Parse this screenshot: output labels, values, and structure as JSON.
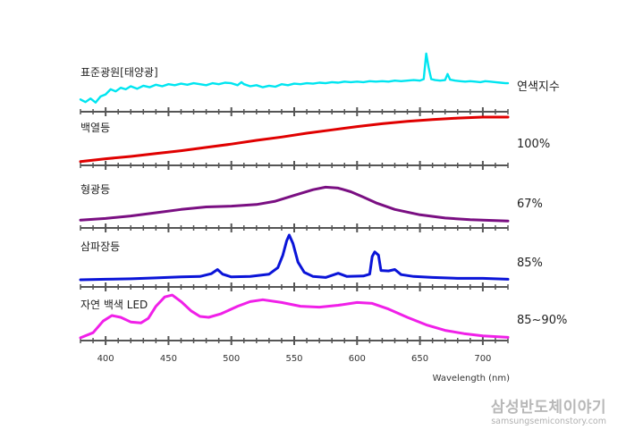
{
  "chart_data": {
    "type": "line",
    "xlabel": "Wavelength (nm)",
    "xlim": [
      380,
      720
    ],
    "xticks": [
      400,
      450,
      500,
      550,
      600,
      650,
      700
    ],
    "cri_header": "연색지수",
    "series": [
      {
        "name": "표준광원[태양광]",
        "cri": "",
        "color": "#00e5f0",
        "points": [
          [
            380,
            0.1
          ],
          [
            384,
            0.05
          ],
          [
            388,
            0.12
          ],
          [
            392,
            0.04
          ],
          [
            396,
            0.16
          ],
          [
            400,
            0.2
          ],
          [
            404,
            0.3
          ],
          [
            408,
            0.26
          ],
          [
            412,
            0.33
          ],
          [
            416,
            0.3
          ],
          [
            420,
            0.36
          ],
          [
            425,
            0.31
          ],
          [
            430,
            0.37
          ],
          [
            435,
            0.34
          ],
          [
            440,
            0.39
          ],
          [
            445,
            0.36
          ],
          [
            450,
            0.4
          ],
          [
            455,
            0.38
          ],
          [
            460,
            0.41
          ],
          [
            465,
            0.39
          ],
          [
            470,
            0.42
          ],
          [
            475,
            0.4
          ],
          [
            480,
            0.38
          ],
          [
            485,
            0.42
          ],
          [
            490,
            0.4
          ],
          [
            495,
            0.43
          ],
          [
            500,
            0.42
          ],
          [
            505,
            0.38
          ],
          [
            508,
            0.44
          ],
          [
            510,
            0.4
          ],
          [
            515,
            0.36
          ],
          [
            520,
            0.38
          ],
          [
            525,
            0.34
          ],
          [
            530,
            0.37
          ],
          [
            535,
            0.35
          ],
          [
            540,
            0.4
          ],
          [
            545,
            0.38
          ],
          [
            550,
            0.41
          ],
          [
            555,
            0.4
          ],
          [
            560,
            0.42
          ],
          [
            565,
            0.41
          ],
          [
            570,
            0.43
          ],
          [
            575,
            0.42
          ],
          [
            580,
            0.44
          ],
          [
            585,
            0.43
          ],
          [
            590,
            0.45
          ],
          [
            595,
            0.44
          ],
          [
            600,
            0.45
          ],
          [
            605,
            0.44
          ],
          [
            610,
            0.46
          ],
          [
            615,
            0.45
          ],
          [
            620,
            0.46
          ],
          [
            625,
            0.45
          ],
          [
            630,
            0.47
          ],
          [
            635,
            0.46
          ],
          [
            640,
            0.47
          ],
          [
            645,
            0.48
          ],
          [
            650,
            0.47
          ],
          [
            653,
            0.5
          ],
          [
            655,
            1.0
          ],
          [
            657,
            0.72
          ],
          [
            659,
            0.5
          ],
          [
            662,
            0.48
          ],
          [
            666,
            0.47
          ],
          [
            670,
            0.48
          ],
          [
            672,
            0.6
          ],
          [
            674,
            0.49
          ],
          [
            678,
            0.47
          ],
          [
            682,
            0.46
          ],
          [
            686,
            0.45
          ],
          [
            690,
            0.46
          ],
          [
            694,
            0.45
          ],
          [
            698,
            0.44
          ],
          [
            702,
            0.46
          ],
          [
            706,
            0.45
          ],
          [
            710,
            0.44
          ],
          [
            714,
            0.43
          ],
          [
            718,
            0.42
          ],
          [
            720,
            0.42
          ]
        ]
      },
      {
        "name": "백열등",
        "cri": "100%",
        "color": "#e00000",
        "points": [
          [
            380,
            0.06
          ],
          [
            400,
            0.12
          ],
          [
            420,
            0.17
          ],
          [
            440,
            0.23
          ],
          [
            460,
            0.29
          ],
          [
            480,
            0.36
          ],
          [
            500,
            0.43
          ],
          [
            520,
            0.51
          ],
          [
            540,
            0.58
          ],
          [
            560,
            0.66
          ],
          [
            580,
            0.73
          ],
          [
            600,
            0.8
          ],
          [
            620,
            0.86
          ],
          [
            640,
            0.91
          ],
          [
            660,
            0.95
          ],
          [
            680,
            0.98
          ],
          [
            700,
            1.0
          ],
          [
            720,
            1.0
          ]
        ]
      },
      {
        "name": "형광등",
        "cri": "67%",
        "color": "#7a0f82",
        "points": [
          [
            380,
            0.06
          ],
          [
            400,
            0.1
          ],
          [
            420,
            0.16
          ],
          [
            440,
            0.24
          ],
          [
            460,
            0.32
          ],
          [
            480,
            0.38
          ],
          [
            500,
            0.4
          ],
          [
            520,
            0.44
          ],
          [
            535,
            0.52
          ],
          [
            550,
            0.66
          ],
          [
            565,
            0.8
          ],
          [
            575,
            0.86
          ],
          [
            585,
            0.84
          ],
          [
            595,
            0.75
          ],
          [
            605,
            0.62
          ],
          [
            615,
            0.48
          ],
          [
            630,
            0.32
          ],
          [
            650,
            0.19
          ],
          [
            670,
            0.11
          ],
          [
            690,
            0.07
          ],
          [
            720,
            0.04
          ]
        ]
      },
      {
        "name": "삼파장등",
        "cri": "85%",
        "color": "#0a14d8",
        "points": [
          [
            380,
            0.02
          ],
          [
            400,
            0.03
          ],
          [
            420,
            0.04
          ],
          [
            440,
            0.06
          ],
          [
            460,
            0.08
          ],
          [
            475,
            0.09
          ],
          [
            484,
            0.15
          ],
          [
            489,
            0.24
          ],
          [
            493,
            0.14
          ],
          [
            500,
            0.08
          ],
          [
            515,
            0.09
          ],
          [
            530,
            0.14
          ],
          [
            537,
            0.28
          ],
          [
            541,
            0.55
          ],
          [
            544,
            0.86
          ],
          [
            546,
            0.98
          ],
          [
            549,
            0.8
          ],
          [
            553,
            0.4
          ],
          [
            558,
            0.18
          ],
          [
            565,
            0.09
          ],
          [
            575,
            0.07
          ],
          [
            585,
            0.16
          ],
          [
            592,
            0.09
          ],
          [
            605,
            0.1
          ],
          [
            610,
            0.14
          ],
          [
            612,
            0.52
          ],
          [
            614,
            0.62
          ],
          [
            617,
            0.55
          ],
          [
            619,
            0.22
          ],
          [
            625,
            0.21
          ],
          [
            630,
            0.24
          ],
          [
            635,
            0.13
          ],
          [
            645,
            0.09
          ],
          [
            660,
            0.07
          ],
          [
            680,
            0.05
          ],
          [
            700,
            0.05
          ],
          [
            720,
            0.03
          ]
        ]
      },
      {
        "name": "자연 백색 LED",
        "cri": "85~90%",
        "color": "#f020e8",
        "points": [
          [
            380,
            0.04
          ],
          [
            390,
            0.15
          ],
          [
            398,
            0.4
          ],
          [
            405,
            0.52
          ],
          [
            412,
            0.48
          ],
          [
            420,
            0.38
          ],
          [
            428,
            0.36
          ],
          [
            434,
            0.46
          ],
          [
            440,
            0.72
          ],
          [
            447,
            0.92
          ],
          [
            453,
            0.96
          ],
          [
            460,
            0.82
          ],
          [
            468,
            0.62
          ],
          [
            475,
            0.5
          ],
          [
            482,
            0.48
          ],
          [
            492,
            0.56
          ],
          [
            505,
            0.72
          ],
          [
            515,
            0.82
          ],
          [
            525,
            0.86
          ],
          [
            540,
            0.8
          ],
          [
            555,
            0.72
          ],
          [
            570,
            0.7
          ],
          [
            585,
            0.74
          ],
          [
            600,
            0.8
          ],
          [
            612,
            0.78
          ],
          [
            625,
            0.66
          ],
          [
            640,
            0.48
          ],
          [
            655,
            0.32
          ],
          [
            670,
            0.2
          ],
          [
            685,
            0.13
          ],
          [
            700,
            0.08
          ],
          [
            720,
            0.05
          ]
        ]
      }
    ]
  },
  "watermark": {
    "brand": "삼성반도체이야기",
    "url": "samsungsemiconstory.com"
  }
}
